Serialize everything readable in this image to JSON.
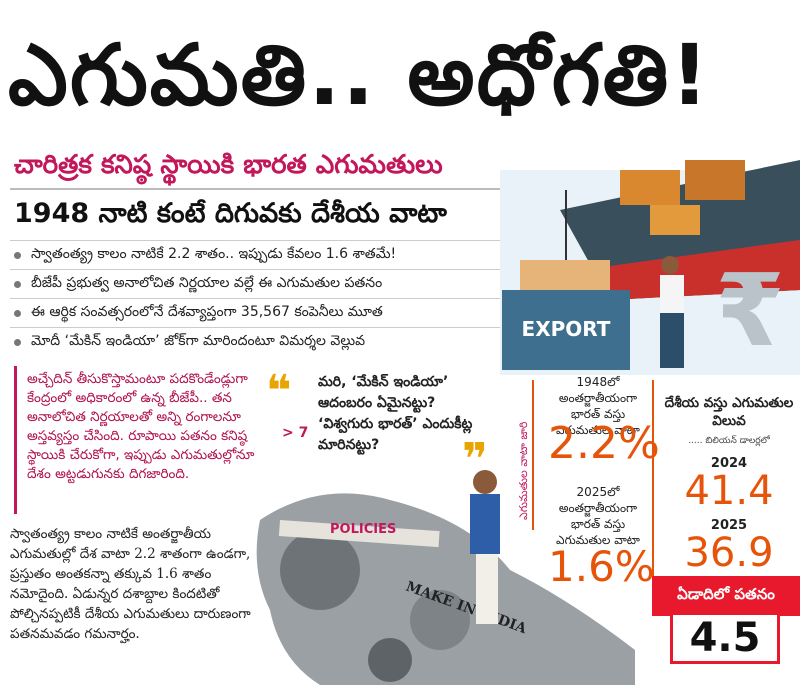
{
  "headline": "ఎగుమతి.. అధోగతి!",
  "subheads": {
    "main": "చారిత్రక కనిష్ఠ స్థాయికి భారత ఎగుమతులు",
    "secondary": "1948 నాటి కంటే దిగువకు దేశీయ వాటా"
  },
  "bullets": [
    "స్వాతంత్య్ర కాలం నాటికే 2.2 శాతం.. ఇప్పుడు కేవలం 1.6 శాతమే!",
    "బీజేపీ ప్రభుత్వ అనాలోచిత నిర్ణయాల వల్లే ఈ ఎగుమతుల పతనం",
    "ఈ ఆర్థిక సంవత్సరంలోనే దేశవ్యాప్తంగా 35,567 కంపెనీలు మూత",
    "మోదీ ‘మేకిన్ ఇండియా’ జోక్‌గా మారిందంటూ విమర్శల వెల్లువ"
  ],
  "red_note": "అచ్చేదిన్ తీసుకొస్తామంటూ పదకొండేండ్లుగా కేంద్రంలో అధికారంలో ఉన్న బీజేపీ.. తన అనాలోచిత నిర్ణయాలతో అన్ని రంగాలనూ అస్తవ్యస్తం చేసింది. రూపాయి పతనం కనిష్ఠ స్థాయికి చేరుకోగా, ఇప్పుడు ఎగుమతుల్లోనూ దేశం అట్టడుగునకు దిగజారింది.",
  "body_text": "స్వాతంత్య్ర కాలం నాటికే అంతర్జాతీయ ఎగుమతుల్లో దేశ వాటా 2.2 శాతంగా ఉండగా, ప్రస్తుతం అంతకన్నా తక్కువ 1.6 శాతం నమోదైంది. ఏడున్నర దశాబ్దాల కిందటితో పోల్చినప్పటికీ దేశీయ ఎగుమతులు దారుణంగా పతనమవడం గమనార్హం.",
  "quote": {
    "text": "మరి, ‘మేకిన్ ఇండియా’ ఆదంబరం ఏమైనట్టు? ‘విశ్వగురు భారత్’ ఎందుకీట్ల మారినట్టు?",
    "page_ref": "> 7"
  },
  "illustration": {
    "export_label": "EXPORT",
    "policies_label": "POLICIES",
    "lion_label": "MAKE IN INDIA",
    "rupee_symbol": "₹"
  },
  "stats": {
    "vertical_label": "ఎగుమతుల వాటా జారి",
    "share_1948": {
      "label": "1948లో అంతర్జాతీయంగా భారత్ వస్తు ఎగుమతుల వాటా",
      "value": "2.2%"
    },
    "share_2025": {
      "label": "2025లో అంతర్జాతీయంగా భారత్ వస్తు ఎగుమతుల వాటా",
      "value": "1.6%"
    },
    "domestic": {
      "label": "దేశీయ వస్తు ఎగుమతుల విలువ",
      "note": "..... బిలియన్ డాలర్లలో",
      "year_1": "2024",
      "value_1": "41.4",
      "year_2": "2025",
      "value_2": "36.9"
    },
    "fall": {
      "label": "ఏడాదిలో పతనం",
      "value": "4.5"
    }
  },
  "colors": {
    "accent": "#e6540a",
    "red": "#e8192c",
    "magenta": "#c2185b",
    "quote": "#e8a400"
  }
}
